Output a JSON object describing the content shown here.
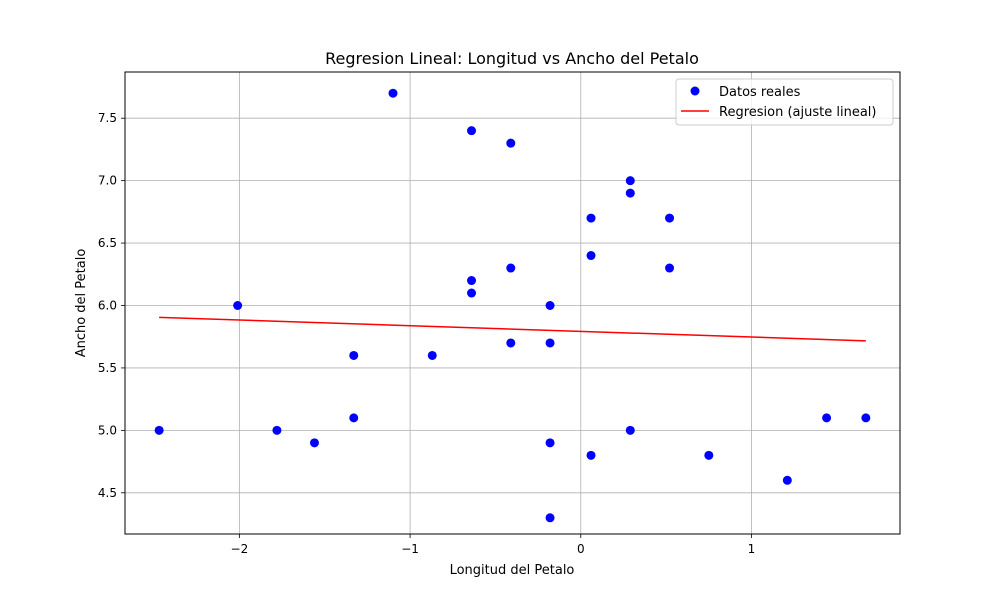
{
  "chart_data": {
    "type": "scatter",
    "title": "Regresion Lineal: Longitud vs Ancho del Petalo",
    "xlabel": "Longitud del Petalo",
    "ylabel": "Ancho del Petalo",
    "xlim": [
      -2.67,
      1.87
    ],
    "ylim": [
      4.17,
      7.87
    ],
    "x_ticks": [
      -2,
      -1,
      0,
      1
    ],
    "x_tick_labels": [
      "−2",
      "−1",
      "0",
      "1"
    ],
    "y_ticks": [
      4.5,
      5.0,
      5.5,
      6.0,
      6.5,
      7.0,
      7.5
    ],
    "y_tick_labels": [
      "4.5",
      "5.0",
      "5.5",
      "6.0",
      "6.5",
      "7.0",
      "7.5"
    ],
    "grid": true,
    "legend_position": "top-right",
    "series": [
      {
        "name": "Datos reales",
        "kind": "scatter",
        "color": "#0000ff",
        "points": [
          [
            -2.47,
            5.0
          ],
          [
            -2.01,
            6.0
          ],
          [
            -1.78,
            5.0
          ],
          [
            -1.56,
            4.9
          ],
          [
            -1.33,
            5.6
          ],
          [
            -1.33,
            5.1
          ],
          [
            -1.1,
            7.7
          ],
          [
            -0.87,
            5.6
          ],
          [
            -0.64,
            7.4
          ],
          [
            -0.64,
            6.2
          ],
          [
            -0.64,
            6.1
          ],
          [
            -0.41,
            7.3
          ],
          [
            -0.41,
            6.3
          ],
          [
            -0.41,
            5.7
          ],
          [
            -0.18,
            6.0
          ],
          [
            -0.18,
            5.7
          ],
          [
            -0.18,
            4.9
          ],
          [
            -0.18,
            4.3
          ],
          [
            0.06,
            6.7
          ],
          [
            0.06,
            6.4
          ],
          [
            0.06,
            4.8
          ],
          [
            0.29,
            7.0
          ],
          [
            0.29,
            6.9
          ],
          [
            0.29,
            5.0
          ],
          [
            0.52,
            6.7
          ],
          [
            0.52,
            6.3
          ],
          [
            0.75,
            4.8
          ],
          [
            1.21,
            4.6
          ],
          [
            1.44,
            5.1
          ],
          [
            1.67,
            5.1
          ]
        ]
      },
      {
        "name": "Regresion (ajuste lineal)",
        "kind": "line",
        "color": "#ff0000",
        "points": [
          [
            -2.47,
            5.905
          ],
          [
            1.67,
            5.717
          ]
        ]
      }
    ]
  }
}
